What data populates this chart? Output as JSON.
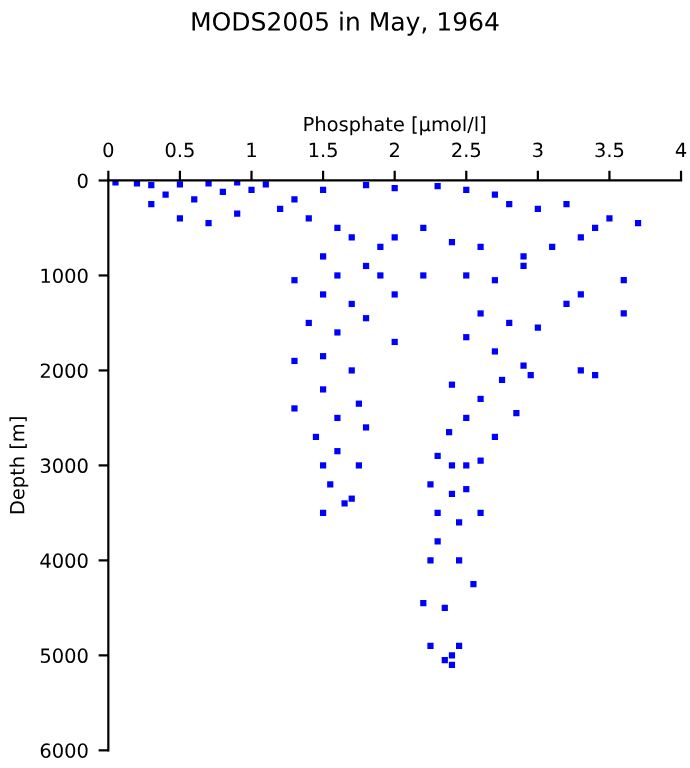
{
  "chart_data": {
    "type": "scatter",
    "title": "MODS2005 in May, 1964",
    "xlabel": "Phosphate [µmol/l]",
    "ylabel": "Depth [m]",
    "xlim": [
      0,
      4
    ],
    "xticks": [
      0,
      0.5,
      1,
      1.5,
      2,
      2.5,
      3,
      3.5,
      4
    ],
    "ylim": [
      6000,
      0
    ],
    "yticks": [
      0,
      1000,
      2000,
      3000,
      4000,
      5000,
      6000
    ],
    "grid": false,
    "marker": "square",
    "series": [
      {
        "color": "#0000ff",
        "x": [
          0.05,
          0.2,
          0.3,
          0.5,
          0.7,
          0.9,
          1.1,
          0.4,
          0.6,
          0.8,
          1.0,
          0.3,
          0.5,
          0.9,
          1.2,
          0.7,
          1.3,
          1.5,
          1.8,
          2.0,
          2.3,
          2.5,
          2.7,
          2.8,
          3.0,
          3.2,
          3.4,
          3.7,
          1.4,
          1.6,
          1.7,
          1.9,
          1.5,
          1.8,
          2.0,
          2.2,
          2.4,
          2.6,
          2.9,
          3.1,
          3.3,
          3.5,
          3.6,
          3.3,
          2.9,
          2.7,
          2.5,
          2.2,
          1.9,
          1.6,
          1.3,
          1.5,
          1.7,
          2.0,
          1.4,
          1.6,
          1.8,
          2.0,
          1.5,
          1.7,
          1.3,
          2.6,
          2.8,
          3.0,
          3.2,
          2.7,
          2.9,
          3.3,
          2.5,
          2.75,
          2.95,
          1.3,
          1.5,
          1.6,
          1.75,
          1.45,
          1.8,
          1.5,
          1.6,
          1.75,
          1.55,
          1.65,
          1.5,
          1.7,
          2.4,
          2.6,
          2.5,
          2.85,
          2.7,
          2.3,
          2.4,
          2.5,
          2.6,
          2.25,
          2.4,
          2.5,
          2.3,
          2.45,
          2.6,
          2.3,
          2.45,
          2.25,
          2.55,
          2.2,
          2.35,
          2.4,
          2.25,
          2.35,
          2.45,
          2.4,
          2.38,
          3.6,
          3.4
        ],
        "values": [
          20,
          30,
          50,
          40,
          30,
          20,
          40,
          150,
          200,
          120,
          100,
          250,
          400,
          350,
          300,
          450,
          200,
          100,
          50,
          80,
          60,
          100,
          150,
          250,
          300,
          250,
          500,
          450,
          400,
          500,
          600,
          700,
          800,
          900,
          600,
          500,
          650,
          700,
          800,
          700,
          600,
          400,
          1050,
          1200,
          900,
          1050,
          1000,
          1000,
          1000,
          1000,
          1050,
          1200,
          1300,
          1200,
          1500,
          1600,
          1450,
          1700,
          1850,
          2000,
          1900,
          1400,
          1500,
          1550,
          1300,
          1800,
          1950,
          2000,
          1650,
          2100,
          2050,
          2400,
          2200,
          2500,
          2350,
          2700,
          2600,
          3000,
          2850,
          3000,
          3200,
          3400,
          3500,
          3350,
          2150,
          2300,
          2500,
          2450,
          2700,
          2900,
          3000,
          3000,
          2950,
          3200,
          3300,
          3250,
          3500,
          3600,
          3500,
          3800,
          4000,
          4000,
          4250,
          4450,
          4500,
          5000,
          4900,
          5050,
          4900,
          5100,
          2650,
          1400,
          2050
        ]
      }
    ]
  }
}
